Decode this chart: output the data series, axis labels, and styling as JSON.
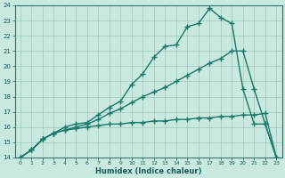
{
  "xlabel": "Humidex (Indice chaleur)",
  "background_color": "#c8e8e0",
  "grid_color": "#a0c8c0",
  "line_color": "#1a7a6a",
  "xlim": [
    -0.5,
    23.5
  ],
  "ylim": [
    14,
    24
  ],
  "xticks": [
    0,
    1,
    2,
    3,
    4,
    5,
    6,
    7,
    8,
    9,
    10,
    11,
    12,
    13,
    14,
    15,
    16,
    17,
    18,
    19,
    20,
    21,
    22,
    23
  ],
  "yticks": [
    14,
    15,
    16,
    17,
    18,
    19,
    20,
    21,
    22,
    23,
    24
  ],
  "line1_x": [
    0,
    1,
    2,
    3,
    4,
    5,
    6,
    7,
    8,
    9,
    10,
    11,
    12,
    13,
    14,
    15,
    16,
    17,
    18,
    19,
    20,
    21,
    22,
    23
  ],
  "line1_y": [
    14,
    14.5,
    15.2,
    15.6,
    15.8,
    15.9,
    16.0,
    16.1,
    16.2,
    16.2,
    16.3,
    16.3,
    16.4,
    16.4,
    16.5,
    16.5,
    16.6,
    16.6,
    16.7,
    16.7,
    16.8,
    16.8,
    16.9,
    14.0
  ],
  "line2_x": [
    0,
    1,
    2,
    3,
    4,
    5,
    6,
    7,
    8,
    9,
    10,
    11,
    12,
    13,
    14,
    15,
    16,
    17,
    18,
    19,
    20,
    21,
    22,
    23
  ],
  "line2_y": [
    14,
    14.5,
    15.2,
    15.6,
    15.8,
    16.0,
    16.2,
    16.5,
    16.9,
    17.2,
    17.6,
    18.0,
    18.3,
    18.6,
    19.0,
    19.4,
    19.8,
    20.2,
    20.5,
    21.0,
    21.0,
    18.5,
    16.2,
    14.0
  ],
  "line3_x": [
    0,
    1,
    2,
    3,
    4,
    5,
    6,
    7,
    8,
    9,
    10,
    11,
    12,
    13,
    14,
    15,
    16,
    17,
    18,
    19,
    20,
    21,
    22,
    23
  ],
  "line3_y": [
    14,
    14.5,
    15.2,
    15.6,
    16.0,
    16.2,
    16.3,
    16.8,
    17.3,
    17.7,
    18.8,
    19.5,
    20.6,
    21.3,
    21.4,
    22.6,
    22.8,
    23.8,
    23.2,
    22.8,
    18.5,
    16.2,
    16.2,
    14.0
  ],
  "marker": "+",
  "markersize": 4,
  "linewidth": 1.0
}
